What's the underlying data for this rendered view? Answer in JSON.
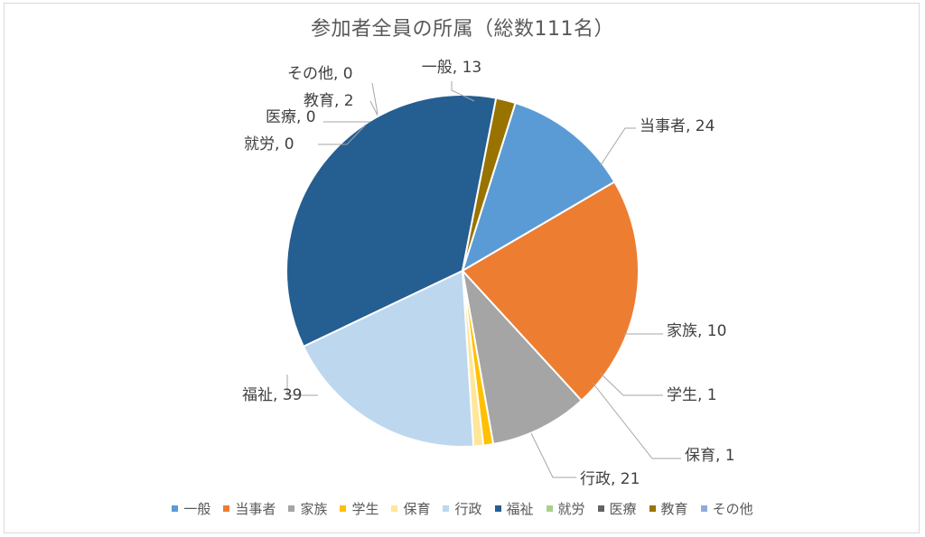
{
  "chart_data": {
    "type": "pie",
    "title": "参加者全員の所属（総数111名）",
    "start_angle_deg": 17.5,
    "slices": [
      {
        "label": "一般",
        "value": 13,
        "color": "#5b9bd5",
        "data_label": "一般, 13"
      },
      {
        "label": "当事者",
        "value": 24,
        "color": "#ed7d31",
        "data_label": "当事者, 24"
      },
      {
        "label": "家族",
        "value": 10,
        "color": "#a5a5a5",
        "data_label": "家族, 10"
      },
      {
        "label": "学生",
        "value": 1,
        "color": "#ffc000",
        "data_label": "学生, 1"
      },
      {
        "label": "保育",
        "value": 1,
        "color": "#ffe699",
        "data_label": "保育, 1"
      },
      {
        "label": "行政",
        "value": 21,
        "color": "#bdd7ee",
        "data_label": "行政, 21"
      },
      {
        "label": "福祉",
        "value": 39,
        "color": "#255e91",
        "data_label": "福祉, 39"
      },
      {
        "label": "就労",
        "value": 0,
        "color": "#a9d18e",
        "data_label": "就労, 0"
      },
      {
        "label": "医療",
        "value": 0,
        "color": "#636363",
        "data_label": "医療, 0"
      },
      {
        "label": "教育",
        "value": 2,
        "color": "#997300",
        "data_label": "教育, 2"
      },
      {
        "label": "その他",
        "value": 0,
        "color": "#8faadc",
        "data_label": "その他, 0"
      }
    ],
    "legend_position": "bottom"
  }
}
